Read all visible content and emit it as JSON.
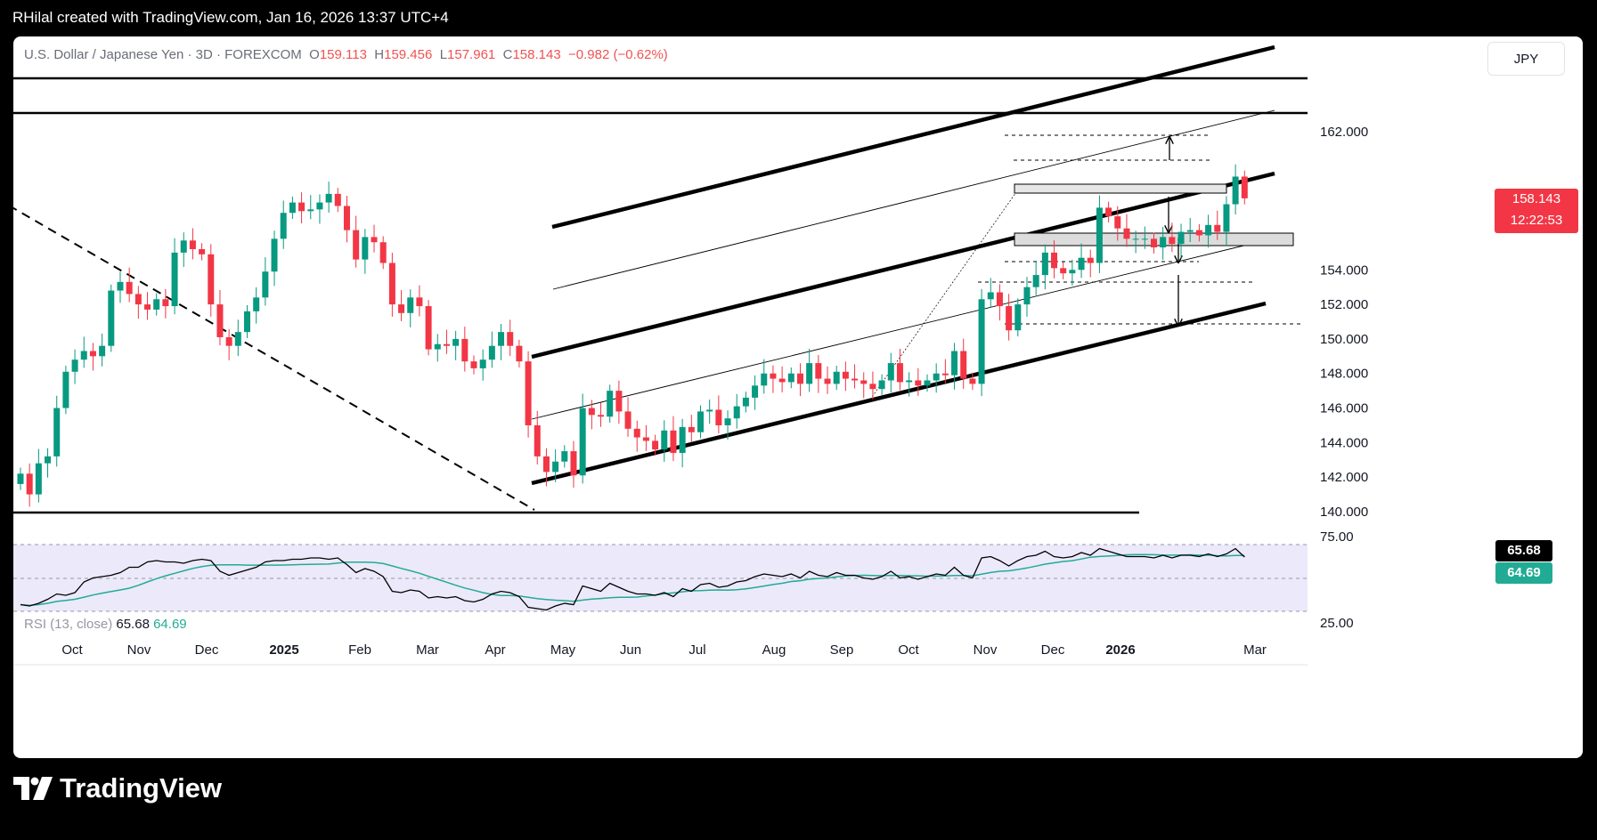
{
  "caption": "RHilal created with TradingView.com, Jan 16, 2026 13:37 UTC+4",
  "header": {
    "symbol": "U.S. Dollar / Japanese Yen · 3D · FOREXCOM",
    "o_label": "O",
    "o": "159.113",
    "h_label": "H",
    "h": "159.456",
    "l_label": "L",
    "l": "157.961",
    "c_label": "C",
    "c": "158.143",
    "change": "−0.982 (−0.62%)",
    "currency": "JPY"
  },
  "price_tag": {
    "price": "158.143",
    "countdown": "12:22:53"
  },
  "rsi": {
    "label": "RSI (13, close)",
    "value": "65.68",
    "ma": "64.69",
    "levels": [
      "75.00",
      "25.00"
    ]
  },
  "colors": {
    "up": "#089981",
    "down": "#f23645",
    "rsi_line": "#000000",
    "rsi_ma": "#22ab94",
    "rsi_band": "#ece9fb"
  },
  "brand": "TradingView",
  "chart_data": {
    "type": "candlestick",
    "symbol": "USDJPY",
    "timeframe": "3D",
    "y_ticks": [
      "162.000",
      "154.000",
      "152.000",
      "150.000",
      "148.000",
      "146.000",
      "144.000",
      "142.000",
      "140.000"
    ],
    "x_ticks": [
      "Oct",
      "Nov",
      "Dec",
      "2025",
      "Feb",
      "Mar",
      "Apr",
      "May",
      "Jun",
      "Jul",
      "Aug",
      "Sep",
      "Oct",
      "Nov",
      "Dec",
      "2026",
      "Mar"
    ],
    "ylim": [
      139.6,
      163.8
    ],
    "closes": [
      142.2,
      141.0,
      142.8,
      143.2,
      146.0,
      148.1,
      148.8,
      149.3,
      149.0,
      149.6,
      152.8,
      153.3,
      152.6,
      152.0,
      151.7,
      152.3,
      151.9,
      155.0,
      155.7,
      155.2,
      154.9,
      152.0,
      150.1,
      149.6,
      150.4,
      151.6,
      152.4,
      153.9,
      155.8,
      157.3,
      157.9,
      157.4,
      157.5,
      157.9,
      158.4,
      157.7,
      156.3,
      154.6,
      155.9,
      155.6,
      154.4,
      152.0,
      151.5,
      152.4,
      151.9,
      149.4,
      149.7,
      149.6,
      150.0,
      148.7,
      148.3,
      148.8,
      149.6,
      150.4,
      149.6,
      148.7,
      145.0,
      143.2,
      142.3,
      142.9,
      143.5,
      142.1,
      146.0,
      145.6,
      145.5,
      147.0,
      145.8,
      144.8,
      144.3,
      144.1,
      143.6,
      144.7,
      143.4,
      144.9,
      144.6,
      145.8,
      145.9,
      145.0,
      145.4,
      146.1,
      146.6,
      147.3,
      148.0,
      147.7,
      147.5,
      148.0,
      147.4,
      148.6,
      147.7,
      147.4,
      148.1,
      147.7,
      147.6,
      147.4,
      147.1,
      147.6,
      148.6,
      147.5,
      147.6,
      147.3,
      147.6,
      148.0,
      147.9,
      149.3,
      147.7,
      147.4,
      152.3,
      152.7,
      151.9,
      150.5,
      152.0,
      153.0,
      153.7,
      155.0,
      154.1,
      153.8,
      154.0,
      154.7,
      154.4,
      157.6,
      157.1,
      156.4,
      155.8,
      155.8,
      155.8,
      155.3,
      155.9,
      155.5,
      156.2,
      156.3,
      156.0,
      156.6,
      156.2,
      157.8,
      159.4,
      158.143
    ],
    "rsi_values": [
      30,
      29,
      31,
      34,
      38,
      37,
      39,
      47,
      50,
      51,
      52,
      54,
      58,
      58,
      62,
      63,
      62,
      62,
      61,
      63,
      64,
      63,
      55,
      52,
      54,
      56,
      58,
      62,
      63,
      63,
      64,
      64,
      65,
      65,
      64,
      65,
      60,
      54,
      57,
      55,
      51,
      40,
      39,
      41,
      40,
      35,
      36,
      35,
      36,
      33,
      32,
      34,
      38,
      40,
      39,
      36,
      28,
      27,
      26,
      29,
      31,
      30,
      44,
      42,
      40,
      46,
      43,
      40,
      38,
      38,
      37,
      39,
      36,
      42,
      40,
      45,
      46,
      43,
      44,
      47,
      48,
      51,
      53,
      52,
      51,
      53,
      50,
      55,
      52,
      51,
      54,
      52,
      52,
      50,
      49,
      51,
      55,
      50,
      51,
      49,
      51,
      53,
      52,
      58,
      52,
      50,
      65,
      66,
      63,
      59,
      63,
      66,
      67,
      70,
      66,
      65,
      66,
      69,
      67,
      72,
      70,
      68,
      66,
      66,
      66,
      65,
      67,
      65,
      67,
      67,
      66,
      68,
      66,
      68,
      72,
      65.68
    ]
  }
}
